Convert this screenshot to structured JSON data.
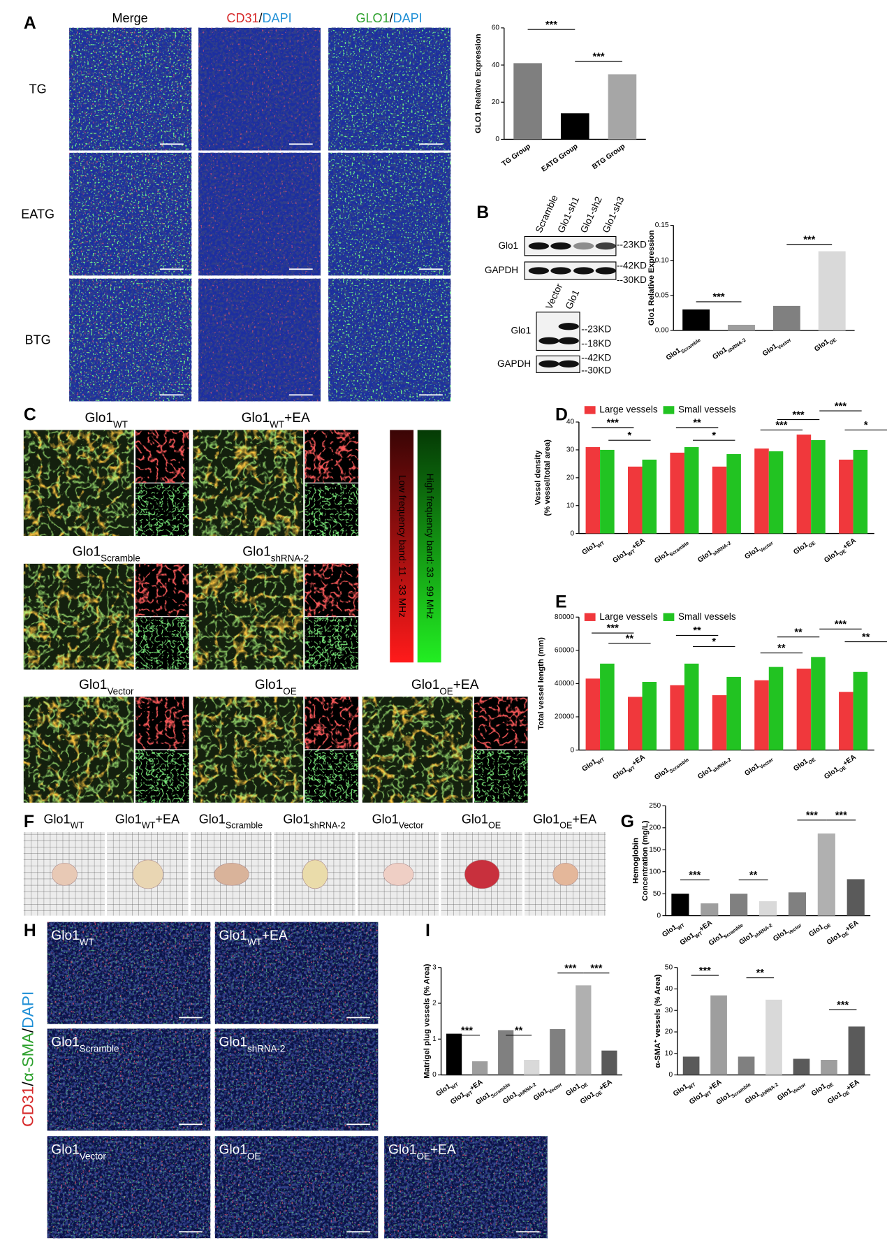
{
  "panel_labels": [
    "A",
    "B",
    "C",
    "D",
    "E",
    "F",
    "G",
    "H",
    "I"
  ],
  "panel_a": {
    "columns": [
      [
        {
          "text": "Merge",
          "color": "#000000"
        }
      ],
      [
        {
          "text": "CD31",
          "color": "#d62728"
        },
        {
          "text": "/",
          "color": "#000000"
        },
        {
          "text": "DAPI",
          "color": "#1f8fd6"
        }
      ],
      [
        {
          "text": "GLO1",
          "color": "#2ca02c"
        },
        {
          "text": "/",
          "color": "#000000"
        },
        {
          "text": "DAPI",
          "color": "#1f8fd6"
        }
      ]
    ],
    "rows": [
      "TG",
      "EATG",
      "BTG"
    ]
  },
  "panel_b": {
    "blot1": {
      "lanes": [
        "Scramble",
        "Glo1-sh1",
        "Glo1-sh2",
        "Glo1-sh3"
      ],
      "bands": [
        "Glo1",
        "GAPDH"
      ],
      "markers": [
        "--23KD",
        "--42KD",
        "--30KD"
      ]
    },
    "blot2": {
      "lanes": [
        "Vector",
        "Glo1"
      ],
      "bands": [
        "Glo1",
        "GAPDH"
      ],
      "markers": [
        "--23KD",
        "--18KD",
        "--42KD",
        "--30KD"
      ]
    }
  },
  "panel_c": {
    "images": [
      {
        "main": "Glo1",
        "sub": "WT"
      },
      {
        "main": "Glo1",
        "sub": "WT",
        "tail": "+EA"
      },
      {
        "main": "Glo1",
        "sub": "Scramble"
      },
      {
        "main": "Glo1",
        "sub": "shRNA-2"
      },
      {
        "main": "Glo1",
        "sub": "Vector"
      },
      {
        "main": "Glo1",
        "sub": "OE"
      },
      {
        "main": "Glo1",
        "sub": "OE",
        "tail": "+EA"
      }
    ],
    "bands": [
      "Low frequency band: 11 - 33 MHz",
      "High frequency band: 33 - 99 MHz"
    ]
  },
  "panel_f": {
    "labels": [
      {
        "main": "Glo1",
        "sub": "WT"
      },
      {
        "main": "Glo1",
        "sub": "WT",
        "tail": "+EA"
      },
      {
        "main": "Glo1",
        "sub": "Scramble"
      },
      {
        "main": "Glo1",
        "sub": "shRNA-2"
      },
      {
        "main": "Glo1",
        "sub": "Vector"
      },
      {
        "main": "Glo1",
        "sub": "OE"
      },
      {
        "main": "Glo1",
        "sub": "OE",
        "tail": "+EA"
      }
    ]
  },
  "panel_h": {
    "stain": [
      {
        "text": "CD31",
        "color": "#d62728"
      },
      {
        "text": "/",
        "color": "#000000"
      },
      {
        "text": "α-SMA",
        "color": "#2ca02c"
      },
      {
        "text": "/",
        "color": "#000000"
      },
      {
        "text": "DAPI",
        "color": "#1f8fd6"
      }
    ],
    "labels": [
      {
        "main": "Glo1",
        "sub": "WT"
      },
      {
        "main": "Glo1",
        "sub": "WT",
        "tail": "+EA"
      },
      {
        "main": "Glo1",
        "sub": "Scramble"
      },
      {
        "main": "Glo1",
        "sub": "shRNA-2"
      },
      {
        "main": "Glo1",
        "sub": "Vector"
      },
      {
        "main": "Glo1",
        "sub": "OE"
      },
      {
        "main": "Glo1",
        "sub": "OE",
        "tail": "+EA"
      }
    ]
  },
  "chart_data": [
    {
      "type": "bar",
      "ylabel": "GLO1 Relative Expression",
      "categories": [
        "TG Group",
        "EATG Group",
        "BTG Group"
      ],
      "values": [
        41,
        14,
        35
      ],
      "colors": [
        "#7f7f7f",
        "#000000",
        "#a6a6a6"
      ],
      "ylim": [
        0,
        60
      ],
      "yticks": [
        0,
        20,
        40,
        60
      ],
      "annotations": [
        "***",
        "***"
      ]
    },
    {
      "type": "bar",
      "ylabel": "Glo1 Relative Expression",
      "categories": [
        {
          "main": "Glo1",
          "sub": "Scramble"
        },
        {
          "main": "Glo1",
          "sub": "shRNA-2"
        },
        {
          "main": "Glo1",
          "sub": "Vector"
        },
        {
          "main": "Glo1",
          "sub": "OE"
        }
      ],
      "values": [
        0.03,
        0.008,
        0.035,
        0.113
      ],
      "colors": [
        "#000000",
        "#9e9e9e",
        "#808080",
        "#d9d9d9"
      ],
      "ylim": [
        0,
        0.15
      ],
      "yticks": [
        {
          "value": 0,
          "label": "0.00"
        },
        {
          "value": 0.05,
          "label": "0.05"
        },
        {
          "value": 0.1,
          "label": "0.10"
        },
        {
          "value": 0.15,
          "label": "0.15"
        }
      ],
      "annotations": [
        "***",
        "***"
      ]
    },
    {
      "type": "bar",
      "ylabel": [
        "Vessel density",
        "(% vessel/total area)"
      ],
      "categories": [
        {
          "main": "Glo1",
          "sub": "WT"
        },
        {
          "main": "Glo1",
          "sub": "WT",
          "tail": "+EA"
        },
        {
          "main": "Glo1",
          "sub": "Scramble"
        },
        {
          "main": "Glo1",
          "sub": "shRNA-2"
        },
        {
          "main": "Glo1",
          "sub": "Vector"
        },
        {
          "main": "Glo1",
          "sub": "OE"
        },
        {
          "main": "Glo1",
          "sub": "OE",
          "tail": "+EA"
        }
      ],
      "series": [
        {
          "name": "Large vessels",
          "color": "#f0383c",
          "values": [
            31,
            24,
            29,
            24,
            30.5,
            35.5,
            26.5
          ]
        },
        {
          "name": "Small vessels",
          "color": "#22c322",
          "values": [
            30,
            26.5,
            31,
            28.5,
            29.5,
            33.5,
            30
          ]
        }
      ],
      "ylim": [
        0,
        40
      ],
      "yticks": [
        0,
        10,
        20,
        30,
        40
      ],
      "annotations": [
        "***",
        "*",
        "**",
        "*",
        "***",
        "***",
        "***",
        "*"
      ]
    },
    {
      "type": "bar",
      "ylabel": "Total vessel length (mm)",
      "categories": [
        {
          "main": "Glo1",
          "sub": "WT"
        },
        {
          "main": "Glo1",
          "sub": "WT",
          "tail": "+EA"
        },
        {
          "main": "Glo1",
          "sub": "Scramble"
        },
        {
          "main": "Glo1",
          "sub": "shRNA-2"
        },
        {
          "main": "Glo1",
          "sub": "Vector"
        },
        {
          "main": "Glo1",
          "sub": "OE"
        },
        {
          "main": "Glo1",
          "sub": "OE",
          "tail": "+EA"
        }
      ],
      "series": [
        {
          "name": "Large vessels",
          "color": "#f0383c",
          "values": [
            43000,
            32000,
            39000,
            33000,
            42000,
            49000,
            35000
          ]
        },
        {
          "name": "Small vessels",
          "color": "#22c322",
          "values": [
            52000,
            41000,
            52000,
            44000,
            50000,
            56000,
            47000
          ]
        }
      ],
      "ylim": [
        0,
        80000
      ],
      "yticks": [
        0,
        20000,
        40000,
        60000,
        80000
      ],
      "annotations": [
        "***",
        "**",
        "**",
        "*",
        "***",
        "**",
        "**",
        "**"
      ]
    },
    {
      "type": "bar",
      "ylabel": [
        "Hemoglobin",
        "Concentration (mg/L)"
      ],
      "categories": [
        {
          "main": "Glo1",
          "sub": "WT"
        },
        {
          "main": "Glo1",
          "sub": "WT",
          "tail": "+EA"
        },
        {
          "main": "Glo1",
          "sub": "Scramble"
        },
        {
          "main": "Glo1",
          "sub": "shRNA-2"
        },
        {
          "main": "Glo1",
          "sub": "Vector"
        },
        {
          "main": "Glo1",
          "sub": "OE"
        },
        {
          "main": "Glo1",
          "sub": "OE",
          "tail": "+EA"
        }
      ],
      "values": [
        50,
        28,
        50,
        33,
        53,
        187,
        83
      ],
      "colors": [
        "#000000",
        "#9e9e9e",
        "#808080",
        "#d9d9d9",
        "#808080",
        "#b0b0b0",
        "#5a5a5a"
      ],
      "ylim": [
        0,
        250
      ],
      "yticks": [
        0,
        50,
        100,
        150,
        200,
        250
      ],
      "annotations": [
        "***",
        "**",
        "***",
        "***"
      ]
    },
    {
      "type": "bar",
      "ylabel": "Matrigel plug vessels (% Area)",
      "categories": [
        {
          "main": "Glo1",
          "sub": "WT"
        },
        {
          "main": "Glo1",
          "sub": "WT",
          "tail": "+EA"
        },
        {
          "main": "Glo1",
          "sub": "Scramble"
        },
        {
          "main": "Glo1",
          "sub": "shRNA-2"
        },
        {
          "main": "Glo1",
          "sub": "Vector"
        },
        {
          "main": "Glo1",
          "sub": "OE"
        },
        {
          "main": "Glo1",
          "sub": "OE",
          "tail": "+EA"
        }
      ],
      "values": [
        1.15,
        0.38,
        1.25,
        0.42,
        1.28,
        2.5,
        0.68
      ],
      "colors": [
        "#000000",
        "#9e9e9e",
        "#808080",
        "#d9d9d9",
        "#808080",
        "#b0b0b0",
        "#5a5a5a"
      ],
      "ylim": [
        0,
        3
      ],
      "yticks": [
        0,
        1,
        2,
        3
      ],
      "annotations": [
        "***",
        "**",
        "***",
        "***"
      ]
    },
    {
      "type": "bar",
      "ylabel": {
        "main": "α-SMA",
        "sup": "+",
        "tail": " vessels (% Area)"
      },
      "categories": [
        {
          "main": "Glo1",
          "sub": "WT"
        },
        {
          "main": "Glo1",
          "sub": "WT",
          "tail": "+EA"
        },
        {
          "main": "Glo1",
          "sub": "Scramble"
        },
        {
          "main": "Glo1",
          "sub": "shRNA-2"
        },
        {
          "main": "Glo1",
          "sub": "Vector"
        },
        {
          "main": "Glo1",
          "sub": "OE"
        },
        {
          "main": "Glo1",
          "sub": "OE",
          "tail": "+EA"
        }
      ],
      "values": [
        8.5,
        37,
        8.5,
        35,
        7.5,
        7,
        22.5
      ],
      "colors": [
        "#5a5a5a",
        "#9e9e9e",
        "#808080",
        "#d9d9d9",
        "#5a5a5a",
        "#9e9e9e",
        "#5a5a5a"
      ],
      "ylim": [
        0,
        50
      ],
      "yticks": [
        0,
        10,
        20,
        30,
        40,
        50
      ],
      "annotations": [
        "***",
        "**",
        "***"
      ]
    }
  ]
}
